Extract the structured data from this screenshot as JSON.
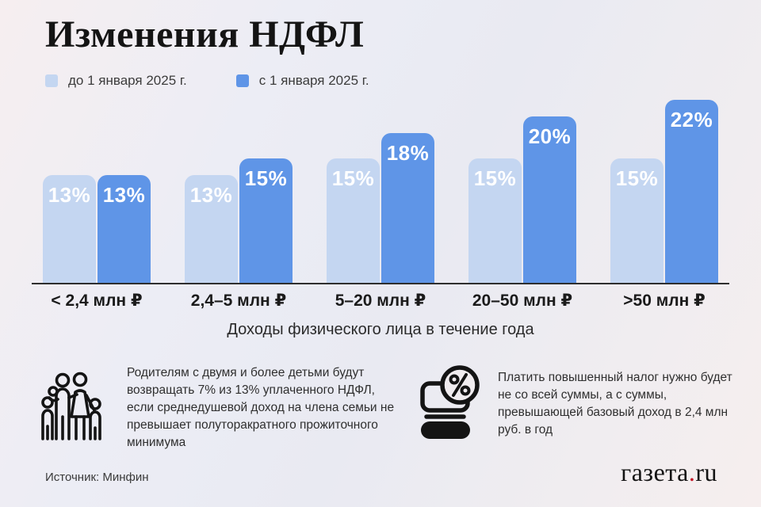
{
  "title": "Изменения НДФЛ",
  "chart_data": {
    "type": "bar",
    "categories": [
      "< 2,4 млн ₽",
      "2,4–5 млн ₽",
      "5–20 млн ₽",
      "20–50 млн ₽",
      ">50 млн ₽"
    ],
    "series": [
      {
        "name": "до 1 января 2025 г.",
        "values": [
          13,
          13,
          15,
          15,
          15
        ],
        "color": "#c4d6f1"
      },
      {
        "name": "с 1 января 2025 г.",
        "values": [
          13,
          15,
          18,
          20,
          22
        ],
        "color": "#5f95e7"
      }
    ],
    "value_suffix": "%",
    "title": "Изменения НДФЛ",
    "xlabel": "Доходы физического лица в течение года",
    "ylabel": "",
    "ylim": [
      0,
      24
    ],
    "grid": false,
    "legend_position": "top-left",
    "bar_labels": "inside-top, white bold"
  },
  "notes": [
    {
      "icon": "family-icon",
      "text": "Родителям с двумя и более детьми будут возвращать 7% из 13% уплаченного НДФЛ, если среднедушевой доход на члена семьи не превышает полуторакратного прожиточного минимума"
    },
    {
      "icon": "percent-money-stack-icon",
      "text": "Платить повышенный налог нужно будет не со всей суммы, а с суммы, превышающей базовый доход в 2,4 млн руб. в год"
    }
  ],
  "source": "Источник: Минфин",
  "logo": {
    "part1": "газета",
    "dot": ".",
    "part2": "ru"
  },
  "colors": {
    "before_bar": "#c4d6f1",
    "after_bar": "#5f95e7",
    "axis_line": "#2e2e2e",
    "logo_dot": "#c41425"
  }
}
